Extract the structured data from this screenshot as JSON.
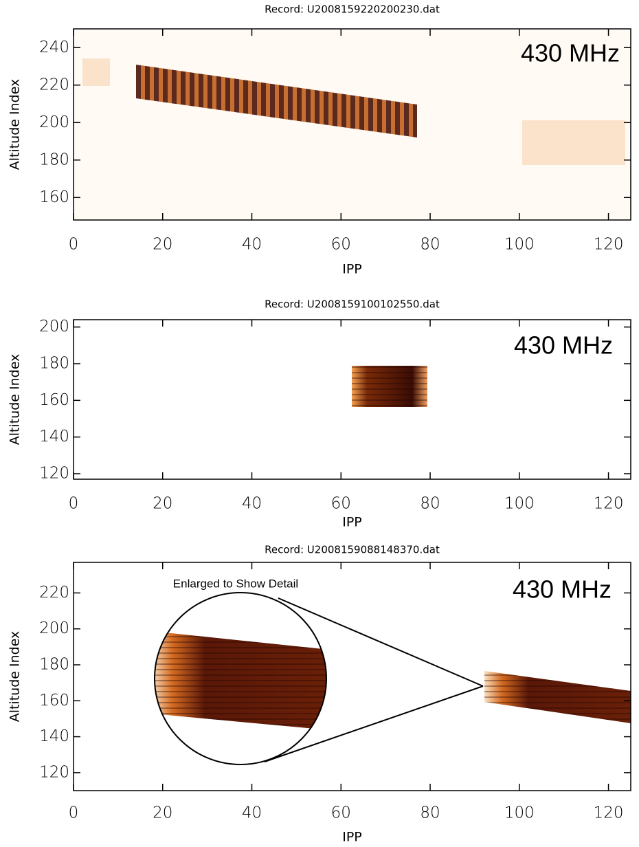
{
  "chart_data": [
    {
      "type": "heatmap",
      "title": "Record: U2008159220200230.dat",
      "x_label": "IPP",
      "y_label": "Altitude Index",
      "annotation": "430 MHz",
      "xlim": [
        0,
        125
      ],
      "xticks": [
        0,
        20,
        40,
        60,
        80,
        100,
        120
      ],
      "ylim": [
        148,
        250
      ],
      "yticks": [
        160,
        180,
        200,
        220,
        240
      ]
    },
    {
      "type": "heatmap",
      "title": "Record: U2008159100102550.dat",
      "x_label": "IPP",
      "y_label": "Altitude Index",
      "annotation": "430 MHz",
      "xlim": [
        0,
        125
      ],
      "xticks": [
        0,
        20,
        40,
        60,
        80,
        100,
        120
      ],
      "ylim": [
        117,
        204
      ],
      "yticks": [
        120,
        140,
        160,
        180,
        200
      ]
    },
    {
      "type": "heatmap",
      "title": "Record: U2008159088148370.dat",
      "x_label": "IPP",
      "y_label": "Altitude Index",
      "annotation": "430 MHz",
      "inset_label": "Enlarged to Show Detail",
      "xlim": [
        0,
        125
      ],
      "xticks": [
        0,
        20,
        40,
        60,
        80,
        100,
        120
      ],
      "ylim": [
        110,
        237
      ],
      "yticks": [
        120,
        140,
        160,
        180,
        200,
        220
      ]
    }
  ]
}
